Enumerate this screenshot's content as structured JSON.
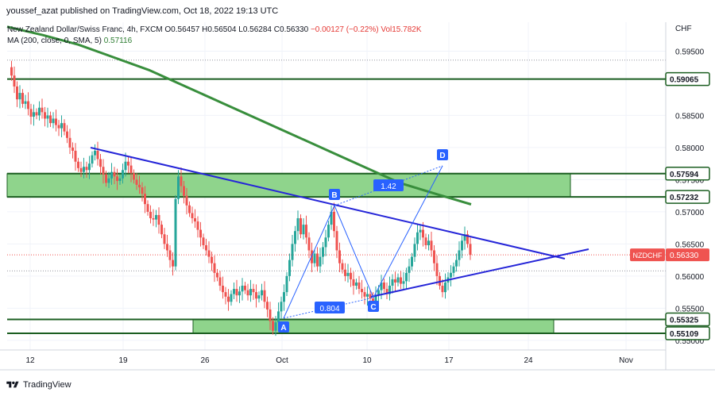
{
  "header": {
    "publisher": "youssef_azat published on TradingView.com, Oct 18, 2022 19:13 UTC"
  },
  "legend": {
    "symbol_line": "New Zealand Dollar/Swiss Franc, 4h, FXCM",
    "open": "O0.56457",
    "high": "H0.56504",
    "low": "L0.56284",
    "close": "C0.56330",
    "change": "−0.00127 (−0.22%)",
    "volume": "Vol15.782K",
    "ma_label": "MA (200, close, 0, SMA, 5)",
    "ma_value": "0.57116"
  },
  "price_axis": {
    "unit": "CHF",
    "ticks": [
      "0.59500",
      "0.58500",
      "0.58000",
      "0.57500",
      "0.57000",
      "0.56500",
      "0.56000",
      "0.55500",
      "0.55000"
    ]
  },
  "time_axis": {
    "ticks": [
      "12",
      "19",
      "26",
      "Oct",
      "10",
      "17",
      "24",
      "Nov"
    ]
  },
  "price_labels": [
    {
      "value": "0.59065",
      "style": "level"
    },
    {
      "value": "0.57594",
      "style": "level"
    },
    {
      "value": "0.57232",
      "style": "level"
    },
    {
      "value": "0.56330",
      "style": "last",
      "symbol": "NZDCHF"
    },
    {
      "value": "0.55325",
      "style": "level"
    },
    {
      "value": "0.55109",
      "style": "level"
    }
  ],
  "pattern": {
    "points": [
      "A",
      "B",
      "C",
      "D"
    ],
    "ratio_ab_bc": "0.804",
    "ratio_bc_cd": "1.42"
  },
  "footer": {
    "brand": "TradingView"
  },
  "colors": {
    "bull": "#26a69a",
    "bear": "#ef5350",
    "ma": "#388e3c",
    "zone_fill": "#8fd48c",
    "zone_line": "#1b5e20",
    "trendline": "#2525d8",
    "pattern": "#2962ff"
  },
  "chart_data": {
    "type": "candlestick",
    "symbol": "NZDCHF",
    "timeframe": "4h",
    "ylim": [
      0.5485,
      0.5995
    ],
    "levels": [
      0.59065,
      0.57594,
      0.57232,
      0.55325,
      0.55109
    ],
    "zones": [
      [
        0.57232,
        0.57594
      ],
      [
        0.55109,
        0.55325
      ]
    ],
    "last_price": 0.5633,
    "ma_200_last": 0.57116,
    "close_path": [
      0.5925,
      0.5912,
      0.5895,
      0.5875,
      0.5885,
      0.5868,
      0.5872,
      0.586,
      0.5848,
      0.5855,
      0.585,
      0.5862,
      0.5855,
      0.5845,
      0.585,
      0.5838,
      0.5845,
      0.5835,
      0.583,
      0.5838,
      0.5825,
      0.5815,
      0.58,
      0.5795,
      0.5778,
      0.5768,
      0.5762,
      0.577,
      0.5765,
      0.5775,
      0.5788,
      0.5795,
      0.5782,
      0.577,
      0.5758,
      0.5745,
      0.5752,
      0.5762,
      0.5755,
      0.5748,
      0.5752,
      0.5765,
      0.5778,
      0.5772,
      0.576,
      0.575,
      0.5742,
      0.5738,
      0.5728,
      0.5712,
      0.57,
      0.569,
      0.5688,
      0.5695,
      0.568,
      0.5665,
      0.565,
      0.564,
      0.5625,
      0.5615,
      0.572,
      0.5755,
      0.574,
      0.5725,
      0.571,
      0.5698,
      0.569,
      0.5685,
      0.5672,
      0.566,
      0.5648,
      0.564,
      0.563,
      0.562,
      0.5605,
      0.5598,
      0.5585,
      0.5575,
      0.5568,
      0.556,
      0.5572,
      0.558,
      0.557,
      0.5576,
      0.5585,
      0.5578,
      0.557,
      0.558,
      0.5575,
      0.5565,
      0.557,
      0.5578,
      0.556,
      0.5548,
      0.553,
      0.5515,
      0.5528,
      0.5545,
      0.556,
      0.5575,
      0.56,
      0.5625,
      0.565,
      0.567,
      0.569,
      0.5665,
      0.568,
      0.566,
      0.564,
      0.562,
      0.5635,
      0.5615,
      0.563,
      0.5645,
      0.566,
      0.568,
      0.57,
      0.567,
      0.564,
      0.562,
      0.561,
      0.56,
      0.5605,
      0.5595,
      0.5585,
      0.559,
      0.558,
      0.5575,
      0.5568,
      0.5572,
      0.5565,
      0.5558,
      0.557,
      0.5578,
      0.559,
      0.558,
      0.5572,
      0.5585,
      0.5595,
      0.559,
      0.5598,
      0.5588,
      0.5592,
      0.5605,
      0.5615,
      0.563,
      0.565,
      0.5668,
      0.5672,
      0.566,
      0.5648,
      0.5655,
      0.564,
      0.562,
      0.56,
      0.5585,
      0.5575,
      0.559,
      0.5598,
      0.5605,
      0.5615,
      0.5625,
      0.564,
      0.5655,
      0.5665,
      0.565,
      0.5633
    ],
    "ma_path": [
      0.5988,
      0.5975,
      0.596,
      0.594,
      0.592,
      0.5895,
      0.587,
      0.5845,
      0.582,
      0.5795,
      0.577,
      0.5745,
      0.5728,
      0.57116
    ]
  }
}
